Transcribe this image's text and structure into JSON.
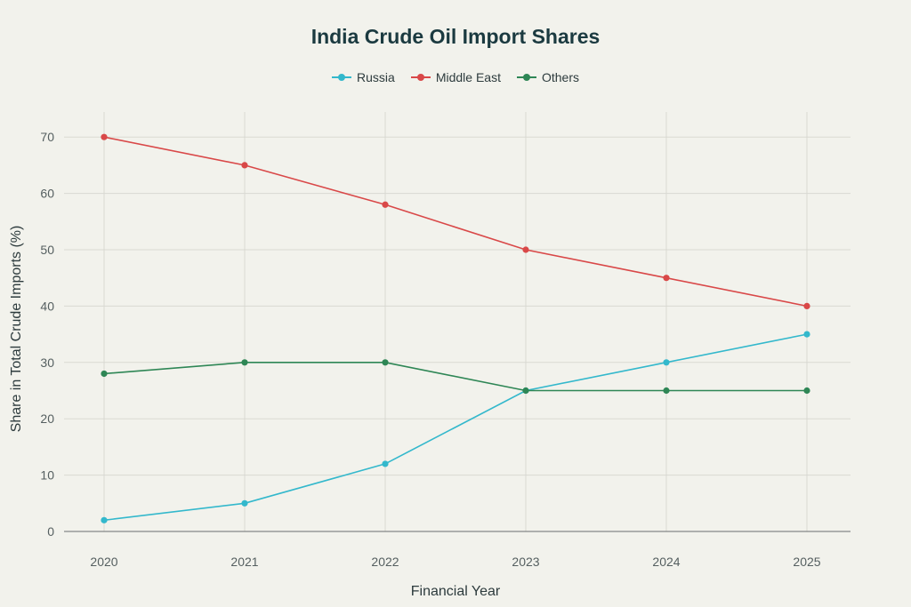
{
  "chart_data": {
    "type": "line",
    "title": "India Crude Oil Import Shares",
    "xlabel": "Financial Year",
    "ylabel": "Share in Total Crude Imports (%)",
    "categories": [
      "2020",
      "2021",
      "2022",
      "2023",
      "2024",
      "2025"
    ],
    "ylim": [
      0,
      75
    ],
    "yticks": [
      0,
      10,
      20,
      30,
      40,
      50,
      60,
      70
    ],
    "grid": true,
    "legend_position": "top-center",
    "series": [
      {
        "name": "Russia",
        "color": "#33b8cc",
        "values": [
          2,
          5,
          12,
          25,
          30,
          35
        ]
      },
      {
        "name": "Middle East",
        "color": "#d94848",
        "values": [
          70,
          65,
          58,
          50,
          45,
          40
        ]
      },
      {
        "name": "Others",
        "color": "#2e8655",
        "values": [
          28,
          30,
          30,
          25,
          25,
          25
        ]
      }
    ]
  }
}
